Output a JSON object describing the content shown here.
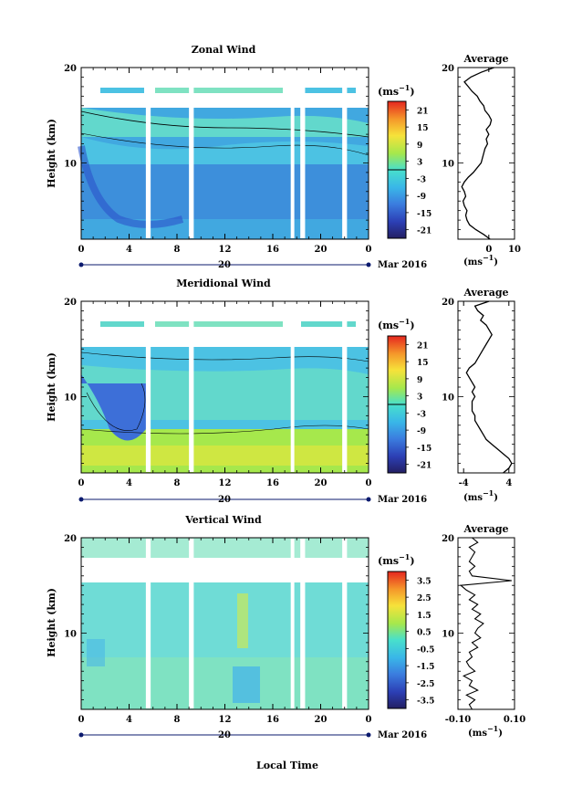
{
  "figure": {
    "x_axis_label": "Local Time",
    "date_center_label": "20",
    "month_label": "Mar 2016",
    "colorbar_unit": "(ms",
    "unit_exp": "−1",
    "unit_close": ")",
    "profile_unit": "(ms",
    "average_title": "Average",
    "height_axis_label": "Height (km)"
  },
  "chart_data": [
    {
      "type": "heatmap",
      "title": "Zonal Wind",
      "ylabel": "Height (km)",
      "xlabel": "",
      "x_ticks": [
        "0",
        "4",
        "8",
        "12",
        "16",
        "20",
        "0"
      ],
      "x_tick_values": [
        0,
        4,
        8,
        12,
        16,
        20,
        24
      ],
      "xlim": [
        0,
        24
      ],
      "y_ticks": [
        "20",
        "10"
      ],
      "y_tick_values": [
        20,
        10
      ],
      "ylim": [
        2,
        20
      ],
      "colorbar_ticks": [
        "21",
        "15",
        "9",
        "3",
        "-3",
        "-9",
        "-15",
        "-21"
      ],
      "colorbar_range": [
        -24,
        24
      ],
      "data_gaps_hours": [
        [
          5.4,
          5.8
        ],
        [
          9.0,
          9.4
        ],
        [
          17.5,
          17.8
        ],
        [
          18.3,
          18.7
        ],
        [
          21.8,
          22.2
        ]
      ],
      "profile": {
        "title": "Average",
        "x_ticks": [
          "0",
          "10"
        ],
        "x_tick_values": [
          0,
          10
        ],
        "xlim": [
          -12,
          10
        ],
        "height": [
          2.0,
          2.5,
          3.0,
          3.5,
          4.0,
          4.5,
          5.0,
          5.5,
          6.0,
          6.5,
          7.0,
          7.5,
          8.0,
          8.5,
          9.0,
          9.5,
          10.0,
          10.5,
          11.0,
          11.5,
          12.0,
          12.5,
          13.0,
          13.5,
          14.0,
          14.5,
          15.0,
          15.5,
          16.0,
          16.5,
          17.0,
          17.5,
          18.0,
          18.5,
          19.0,
          19.5,
          20.0
        ],
        "values": [
          0.5,
          -2.0,
          -5.0,
          -7.5,
          -8.5,
          -9.0,
          -8.5,
          -9.5,
          -10.0,
          -9.0,
          -9.5,
          -10.5,
          -9.5,
          -8.0,
          -6.0,
          -4.5,
          -3.0,
          -2.5,
          -2.0,
          -1.5,
          -0.5,
          -1.0,
          0.0,
          -1.0,
          0.5,
          1.0,
          0.0,
          -1.5,
          -2.0,
          -3.5,
          -4.5,
          -6.5,
          -8.0,
          -9.5,
          -7.0,
          -3.0,
          2.0
        ]
      }
    },
    {
      "type": "heatmap",
      "title": "Meridional Wind",
      "ylabel": "Height (km)",
      "xlabel": "",
      "x_ticks": [
        "0",
        "4",
        "8",
        "12",
        "16",
        "20",
        "0"
      ],
      "x_tick_values": [
        0,
        4,
        8,
        12,
        16,
        20,
        24
      ],
      "xlim": [
        0,
        24
      ],
      "y_ticks": [
        "20",
        "10"
      ],
      "y_tick_values": [
        20,
        10
      ],
      "ylim": [
        2,
        20
      ],
      "colorbar_ticks": [
        "21",
        "15",
        "9",
        "3",
        "-3",
        "-9",
        "-15",
        "-21"
      ],
      "colorbar_range": [
        -24,
        24
      ],
      "data_gaps_hours": [
        [
          5.4,
          5.8
        ],
        [
          9.0,
          9.4
        ],
        [
          17.5,
          17.8
        ],
        [
          21.8,
          22.2
        ]
      ],
      "profile": {
        "title": "Average",
        "x_ticks": [
          "-4",
          "4"
        ],
        "x_tick_values": [
          -4,
          4
        ],
        "xlim": [
          -5,
          5
        ],
        "height": [
          2.0,
          2.5,
          3.0,
          3.5,
          4.0,
          4.5,
          5.0,
          5.5,
          6.0,
          6.5,
          7.0,
          7.5,
          8.0,
          8.5,
          9.0,
          9.5,
          10.0,
          10.5,
          11.0,
          11.5,
          12.0,
          12.5,
          13.0,
          13.5,
          14.0,
          14.5,
          15.0,
          15.5,
          16.0,
          16.5,
          17.0,
          17.5,
          18.0,
          18.5,
          19.0,
          19.5,
          20.0
        ],
        "values": [
          3.0,
          4.0,
          4.5,
          4.0,
          3.0,
          2.0,
          1.0,
          0.0,
          -0.5,
          -1.0,
          -1.5,
          -2.0,
          -2.0,
          -2.5,
          -2.5,
          -2.5,
          -2.0,
          -2.5,
          -2.0,
          -2.5,
          -3.0,
          -3.5,
          -3.0,
          -2.0,
          -1.5,
          -1.0,
          -0.5,
          0.0,
          0.5,
          1.0,
          0.5,
          0.0,
          -1.0,
          -0.5,
          -1.5,
          -2.0,
          0.5
        ]
      }
    },
    {
      "type": "heatmap",
      "title": "Vertical Wind",
      "ylabel": "Height (km)",
      "xlabel": "Local Time",
      "x_ticks": [
        "0",
        "4",
        "8",
        "12",
        "16",
        "20",
        "0"
      ],
      "x_tick_values": [
        0,
        4,
        8,
        12,
        16,
        20,
        24
      ],
      "xlim": [
        0,
        24
      ],
      "y_ticks": [
        "20",
        "10"
      ],
      "y_tick_values": [
        20,
        10
      ],
      "ylim": [
        2,
        20
      ],
      "colorbar_ticks": [
        "3.5",
        "2.5",
        "1.5",
        "0.5",
        "-0.5",
        "-1.5",
        "-2.5",
        "-3.5"
      ],
      "colorbar_range": [
        -4,
        4
      ],
      "data_gaps_hours": [
        [
          5.4,
          5.8
        ],
        [
          9.0,
          9.4
        ],
        [
          17.5,
          17.8
        ],
        [
          18.3,
          18.7
        ],
        [
          21.8,
          22.2
        ]
      ],
      "profile": {
        "title": "Average",
        "x_ticks": [
          "-0.10",
          "0.10"
        ],
        "x_tick_values": [
          -0.1,
          0.1
        ],
        "xlim": [
          -0.1,
          0.1
        ],
        "height": [
          2.0,
          2.5,
          3.0,
          3.5,
          4.0,
          4.5,
          5.0,
          5.5,
          6.0,
          6.5,
          7.0,
          7.5,
          8.0,
          8.5,
          9.0,
          9.5,
          10.0,
          10.5,
          11.0,
          11.5,
          12.0,
          12.5,
          13.0,
          13.5,
          14.0,
          14.5,
          15.0,
          15.5,
          16.0,
          16.5,
          17.0,
          17.5,
          18.0,
          18.5,
          19.0,
          19.5,
          20.0
        ],
        "values": [
          -0.05,
          -0.06,
          -0.04,
          -0.07,
          -0.03,
          -0.06,
          -0.05,
          -0.08,
          -0.04,
          -0.06,
          -0.07,
          -0.05,
          -0.06,
          -0.03,
          -0.05,
          -0.02,
          -0.04,
          -0.03,
          -0.01,
          -0.04,
          -0.02,
          -0.05,
          -0.03,
          -0.06,
          -0.04,
          -0.07,
          -0.09,
          0.09,
          -0.05,
          -0.06,
          -0.04,
          -0.06,
          -0.05,
          -0.04,
          -0.06,
          -0.03,
          -0.05
        ]
      }
    }
  ]
}
